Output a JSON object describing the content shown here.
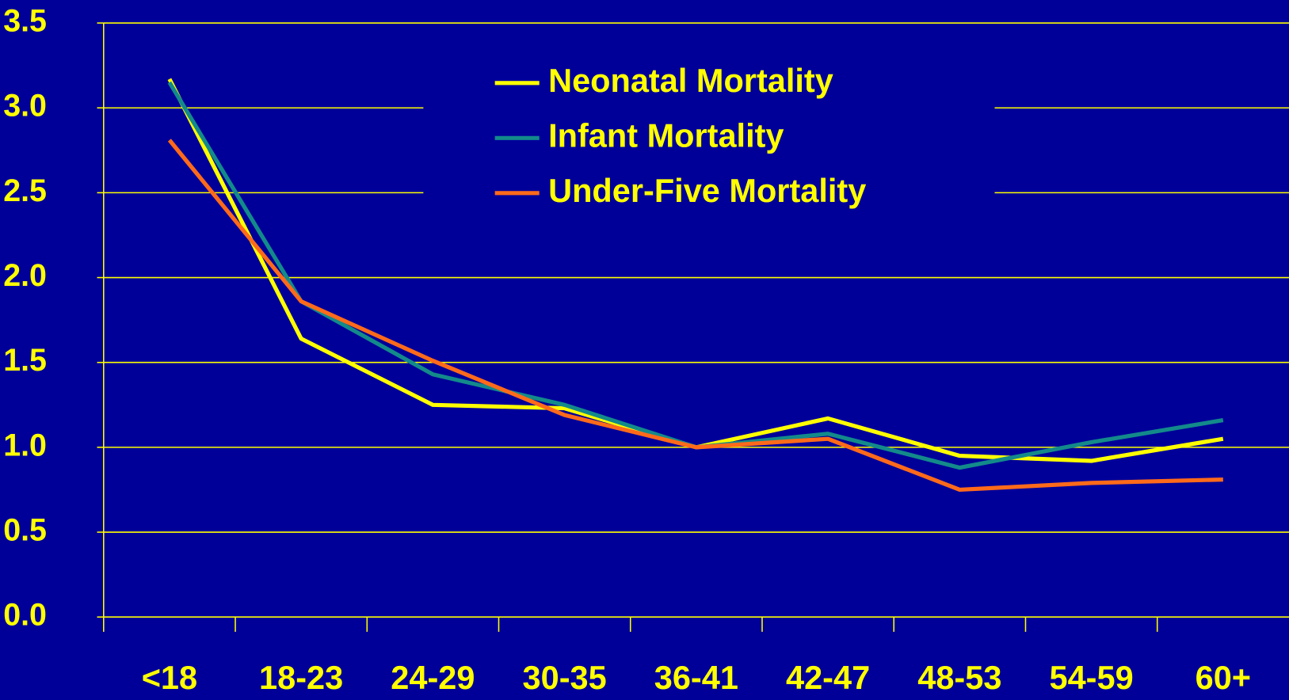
{
  "chart_data": {
    "type": "line",
    "categories": [
      "<18",
      "18-23",
      "24-29",
      "30-35",
      "36-41",
      "42-47",
      "48-53",
      "54-59",
      "60+"
    ],
    "series": [
      {
        "name": "Neonatal Mortality",
        "color": "#ffff00",
        "values": [
          3.17,
          1.64,
          1.25,
          1.23,
          1.0,
          1.17,
          0.95,
          0.92,
          1.05
        ]
      },
      {
        "name": "Infant Mortality",
        "color": "#138a8a",
        "values": [
          3.15,
          1.86,
          1.43,
          1.25,
          1.0,
          1.08,
          0.88,
          1.03,
          1.16
        ]
      },
      {
        "name": "Under-Five Mortality",
        "color": "#ff6a1a",
        "values": [
          2.81,
          1.86,
          1.51,
          1.19,
          1.0,
          1.05,
          0.75,
          0.79,
          0.81
        ]
      }
    ],
    "ylim": [
      0,
      3.5
    ],
    "yticks": [
      {
        "value": 0,
        "label": "0.0"
      },
      0.5,
      {
        "value": 1,
        "label": "1.0"
      },
      1.5,
      {
        "value": 2,
        "label": "2.0"
      },
      2.5,
      {
        "value": 3,
        "label": "3.0"
      },
      3.5
    ],
    "grid": true,
    "legend": "top"
  }
}
